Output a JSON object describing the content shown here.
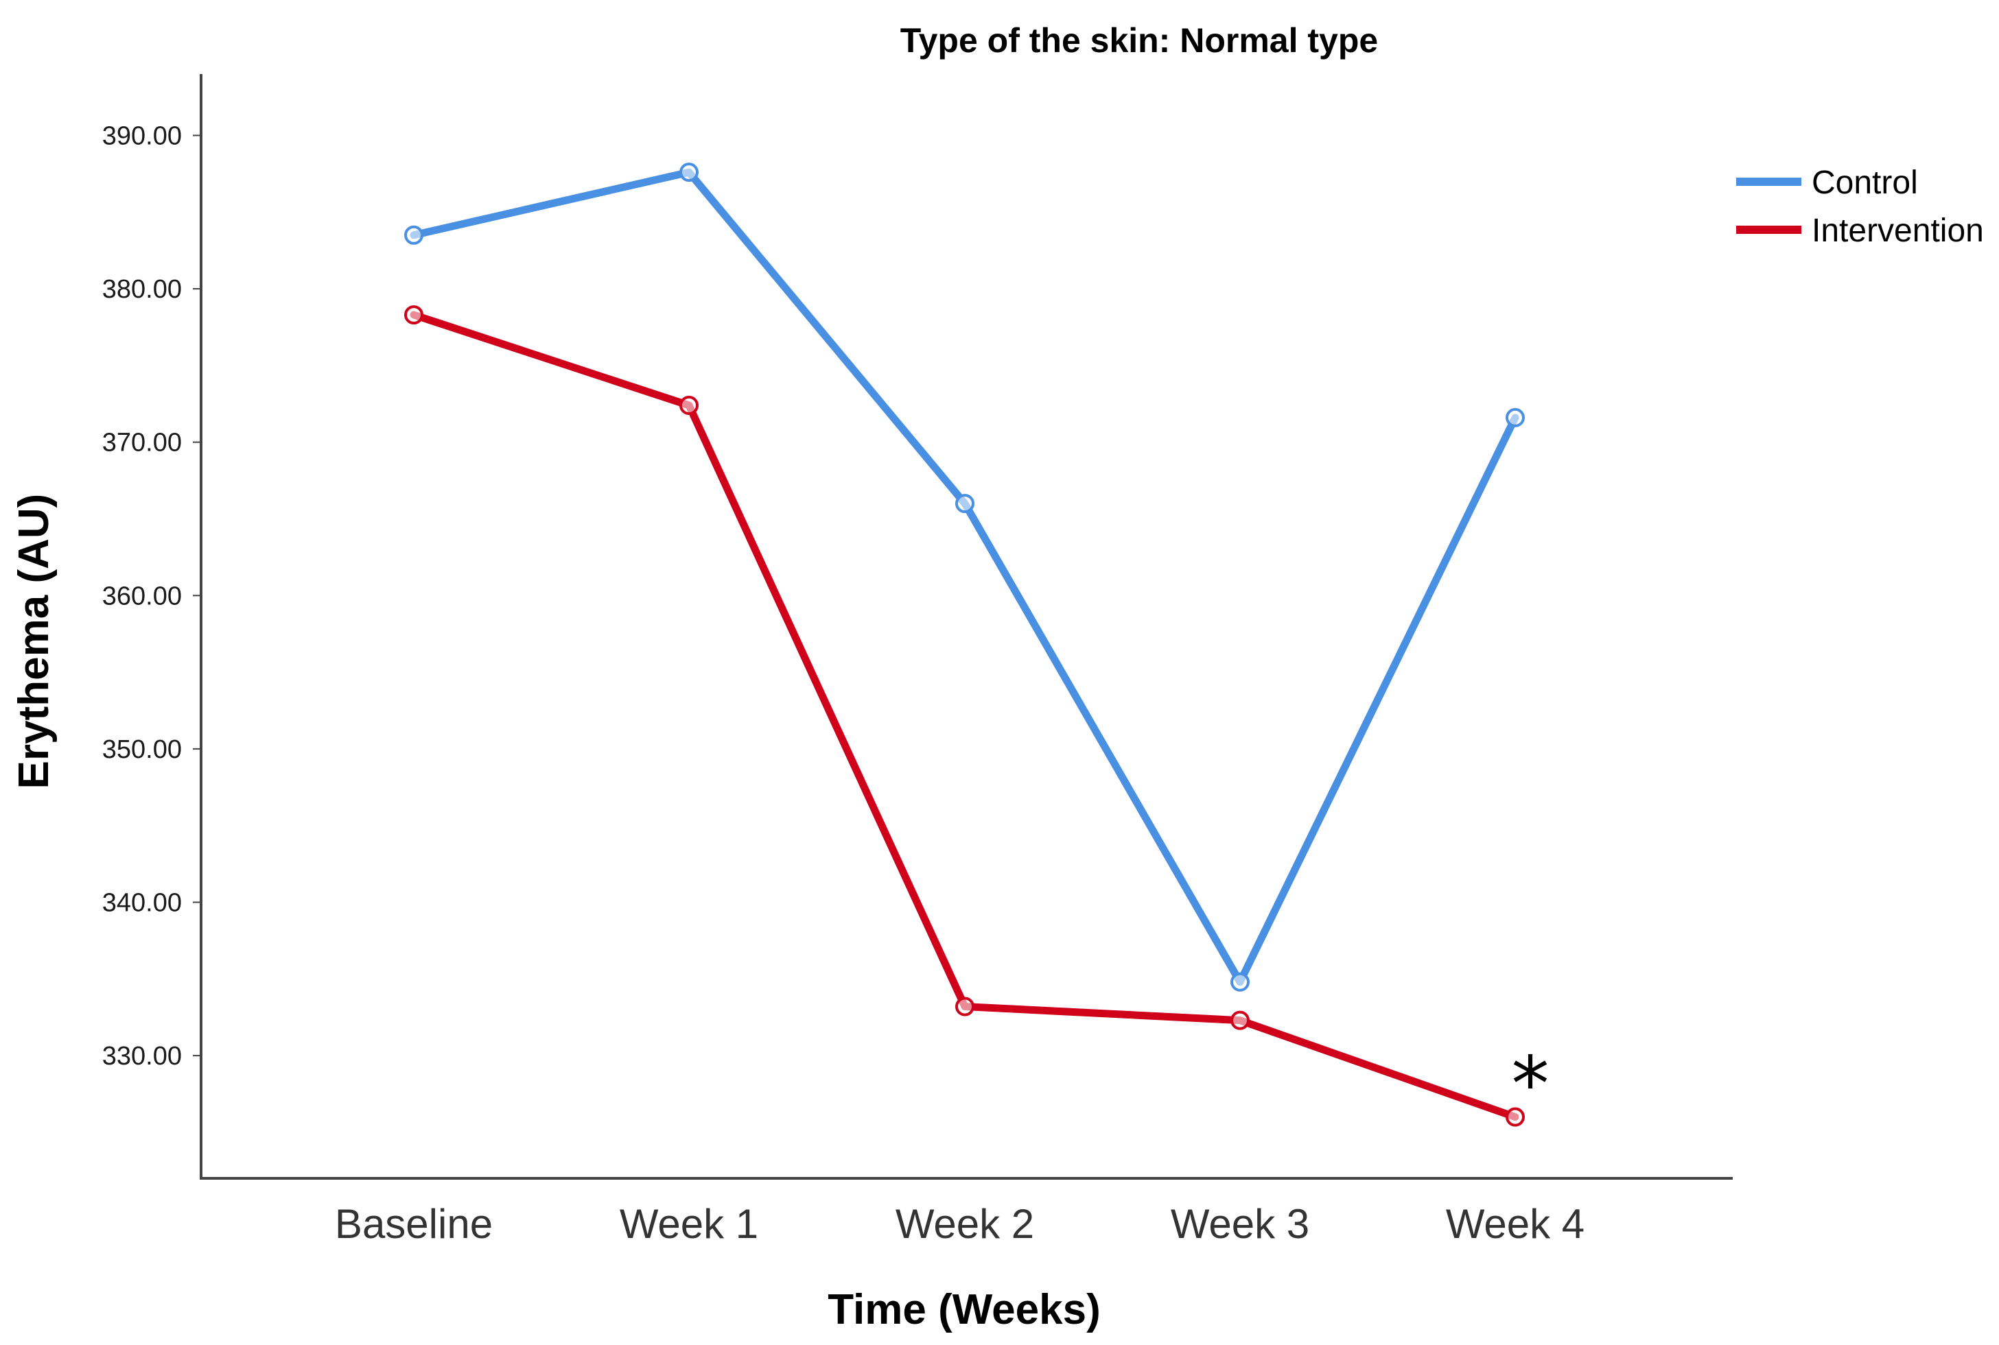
{
  "chart_data": {
    "type": "line",
    "title": "Type of the skin: Normal type",
    "xlabel": "Time (Weeks)",
    "ylabel": "Erythema (AU)",
    "categories": [
      "Baseline",
      "Week 1",
      "Week 2",
      "Week 3",
      "Week 4"
    ],
    "ylim": [
      322,
      394
    ],
    "yticks": [
      330,
      340,
      350,
      360,
      370,
      380,
      390
    ],
    "ytick_labels": [
      "330.00",
      "340.00",
      "350.00",
      "360.00",
      "370.00",
      "380.00",
      "390.00"
    ],
    "grid": false,
    "legend_position": "top-right",
    "series": [
      {
        "name": "Control",
        "color": "#4a90e2",
        "values": [
          383.5,
          387.6,
          366.0,
          334.8,
          371.6
        ]
      },
      {
        "name": "Intervention",
        "color": "#d0021b",
        "values": [
          378.3,
          372.4,
          333.2,
          332.3,
          326.0
        ]
      }
    ],
    "annotations": [
      {
        "text": "*",
        "series": "Intervention",
        "category": "Week 4"
      }
    ]
  }
}
